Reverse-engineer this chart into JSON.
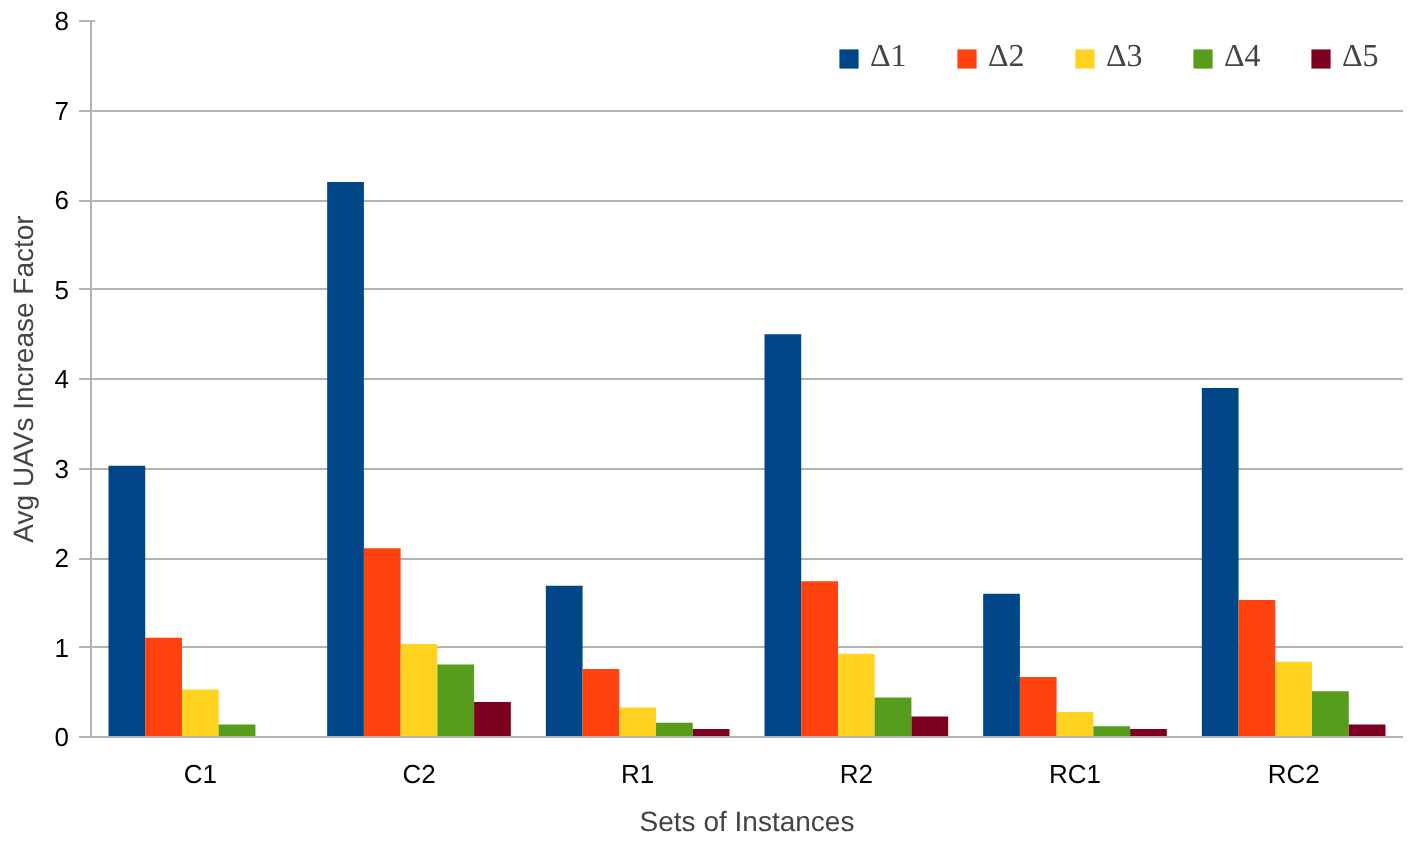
{
  "chart_data": {
    "type": "bar",
    "xlabel": "Sets of Instances",
    "ylabel": "Avg UAVs Increase Factor",
    "categories": [
      "C1",
      "C2",
      "R1",
      "R2",
      "RC1",
      "RC2"
    ],
    "series": [
      {
        "name": "Δ1",
        "color": "#004586",
        "values": [
          3.03,
          6.2,
          1.69,
          4.5,
          1.6,
          3.9
        ]
      },
      {
        "name": "Δ2",
        "color": "#ff420e",
        "values": [
          1.11,
          2.11,
          0.76,
          1.74,
          0.67,
          1.53
        ]
      },
      {
        "name": "Δ3",
        "color": "#ffd320",
        "values": [
          0.53,
          1.04,
          0.33,
          0.93,
          0.28,
          0.84
        ]
      },
      {
        "name": "Δ4",
        "color": "#579d1c",
        "values": [
          0.14,
          0.81,
          0.16,
          0.44,
          0.12,
          0.51
        ]
      },
      {
        "name": "Δ5",
        "color": "#7e0021",
        "values": [
          null,
          0.39,
          0.09,
          0.23,
          0.09,
          0.14
        ]
      }
    ],
    "ylim": [
      0,
      8
    ],
    "yticks": [
      0,
      1,
      2,
      3,
      4,
      5,
      6,
      7,
      8
    ],
    "grid": "y",
    "legend": "top right"
  }
}
